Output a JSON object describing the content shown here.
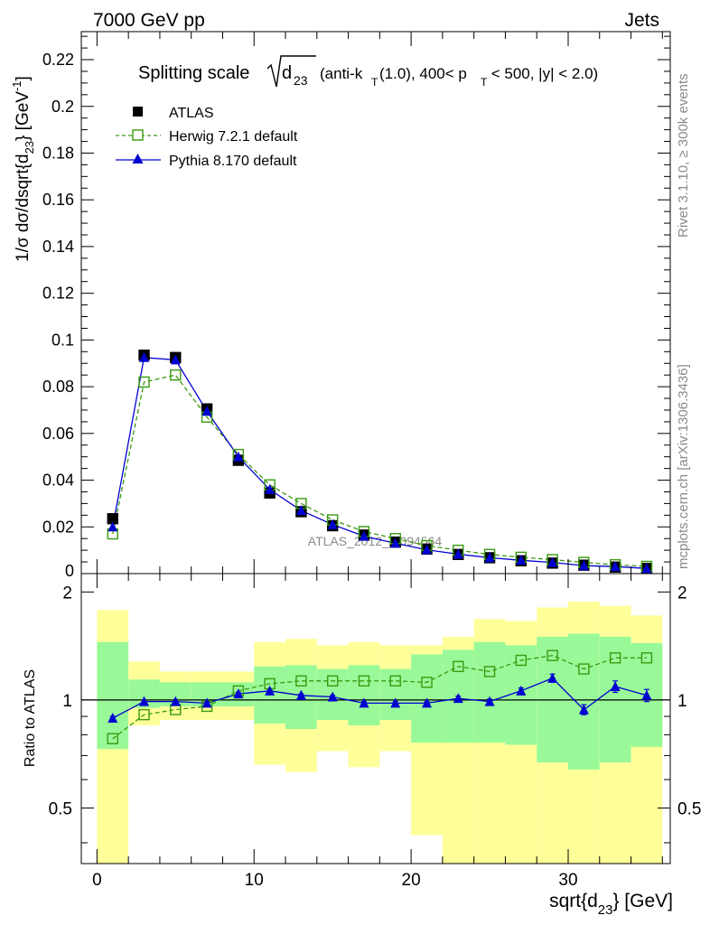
{
  "header": {
    "left": "7000 GeV pp",
    "right": "Jets"
  },
  "side_text": {
    "rivet": "Rivet 3.1.10, ≥ 300k events",
    "mcplots": "mcplots.cern.ch [arXiv:1306.3436]"
  },
  "watermark": "ATLAS_2012_I1094564",
  "title": {
    "prefix": "Splitting scale",
    "root_var": "d",
    "root_sub": "23",
    "rest_1": "(anti-k",
    "rest_1_sub": "T",
    "rest_2": "(1.0), 400< p",
    "rest_2_sub": "T",
    "rest_3": " < 500, |y| < 2.0)"
  },
  "axes": {
    "ylabel_main": "1/σ dσ/dsqrt{d",
    "ylabel_main_sub": "23",
    "ylabel_main_tail": "} [GeV",
    "ylabel_main_sup": "-1",
    "ylabel_main_end": "]",
    "ylabel_ratio": "Ratio to ATLAS",
    "xlabel": "sqrt{d",
    "xlabel_sub": "23",
    "xlabel_tail": "} [GeV]"
  },
  "colors": {
    "atlas": "#000000",
    "herwig": "#3a9a10",
    "pythia": "#0000d0",
    "band_inner": "#99f999",
    "band_outer": "#ffff99"
  },
  "chart_data": [
    {
      "type": "line",
      "panel": "main",
      "x": [
        1,
        3,
        5,
        7,
        9,
        11,
        13,
        15,
        17,
        19,
        21,
        23,
        25,
        27,
        29,
        31,
        33,
        35
      ],
      "xlim": [
        -1,
        36.5
      ],
      "ylim": [
        0,
        0.232
      ],
      "yticks": [
        0.02,
        0.04,
        0.06,
        0.08,
        0.1,
        0.12,
        0.14,
        0.16,
        0.18,
        0.2,
        0.22
      ],
      "ytick_labels": [
        "0.02",
        "0.04",
        "0.06",
        "0.08",
        "0.1",
        "0.12",
        "0.14",
        "0.16",
        "0.18",
        "0.2",
        "0.22"
      ],
      "series": [
        {
          "name": "ATLAS",
          "style": "markers",
          "marker": "filled-square",
          "values": [
            0.0235,
            0.0935,
            0.0925,
            0.0705,
            0.0485,
            0.0345,
            0.0265,
            0.0205,
            0.0165,
            0.0135,
            0.0105,
            0.0082,
            0.0068,
            0.0055,
            0.0045,
            0.0036,
            0.0028,
            0.0022
          ]
        },
        {
          "name": "Herwig 7.2.1 default",
          "style": "dashed",
          "marker": "open-square",
          "values": [
            0.017,
            0.082,
            0.085,
            0.067,
            0.051,
            0.038,
            0.03,
            0.023,
            0.018,
            0.015,
            0.012,
            0.01,
            0.0082,
            0.007,
            0.006,
            0.0048,
            0.0038,
            0.0031
          ]
        },
        {
          "name": "Pythia 8.170 default",
          "style": "solid",
          "marker": "filled-triangle",
          "values": [
            0.02,
            0.0925,
            0.0915,
            0.0695,
            0.05,
            0.036,
            0.027,
            0.021,
            0.016,
            0.013,
            0.0102,
            0.0083,
            0.0068,
            0.0057,
            0.0048,
            0.0034,
            0.003,
            0.0022
          ]
        }
      ]
    },
    {
      "type": "line",
      "panel": "ratio",
      "x": [
        1,
        3,
        5,
        7,
        9,
        11,
        13,
        15,
        17,
        19,
        21,
        23,
        25,
        27,
        29,
        31,
        33,
        35
      ],
      "xlim": [
        -1,
        36.5
      ],
      "ylim": [
        0.35,
        2.25
      ],
      "yticks": [
        0.5,
        1,
        2
      ],
      "ytick_labels": [
        "0.5",
        "1",
        "2"
      ],
      "xticks": [
        0,
        10,
        20,
        30
      ],
      "xtick_labels": [
        "0",
        "10",
        "20",
        "30"
      ],
      "bands": {
        "bin_edges": [
          0,
          2,
          4,
          6,
          8,
          10,
          12,
          14,
          16,
          18,
          20,
          22,
          24,
          26,
          28,
          30,
          32,
          34,
          36
        ],
        "outer_low": [
          0.35,
          0.85,
          0.88,
          0.88,
          0.88,
          0.66,
          0.63,
          0.72,
          0.65,
          0.72,
          0.42,
          0.35,
          0.35,
          0.35,
          0.35,
          0.35,
          0.35,
          0.35
        ],
        "outer_high": [
          1.78,
          1.28,
          1.2,
          1.2,
          1.2,
          1.45,
          1.48,
          1.42,
          1.45,
          1.42,
          1.42,
          1.5,
          1.68,
          1.66,
          1.81,
          1.88,
          1.83,
          1.72
        ],
        "inner_low": [
          0.73,
          0.95,
          0.96,
          0.96,
          0.96,
          0.86,
          0.83,
          0.88,
          0.85,
          0.88,
          0.76,
          0.76,
          0.76,
          0.75,
          0.67,
          0.64,
          0.67,
          0.74
        ],
        "inner_high": [
          1.45,
          1.14,
          1.12,
          1.12,
          1.12,
          1.24,
          1.25,
          1.22,
          1.25,
          1.22,
          1.34,
          1.38,
          1.45,
          1.42,
          1.5,
          1.53,
          1.5,
          1.44
        ]
      },
      "series": [
        {
          "name": "Herwig 7.2.1 default",
          "style": "dashed",
          "marker": "open-square",
          "values": [
            0.78,
            0.91,
            0.94,
            0.96,
            1.06,
            1.11,
            1.13,
            1.13,
            1.13,
            1.13,
            1.12,
            1.24,
            1.2,
            1.29,
            1.33,
            1.22,
            1.31,
            1.31
          ]
        },
        {
          "name": "Pythia 8.170 default",
          "style": "solid",
          "marker": "filled-triangle",
          "values": [
            0.89,
            0.99,
            0.99,
            0.98,
            1.04,
            1.06,
            1.03,
            1.02,
            0.98,
            0.98,
            0.98,
            1.01,
            0.99,
            1.06,
            1.15,
            0.94,
            1.09,
            1.03
          ],
          "errors": [
            0.01,
            0.005,
            0.005,
            0.005,
            0.01,
            0.01,
            0.01,
            0.01,
            0.01,
            0.01,
            0.01,
            0.015,
            0.015,
            0.02,
            0.03,
            0.03,
            0.04,
            0.04
          ]
        }
      ]
    }
  ]
}
